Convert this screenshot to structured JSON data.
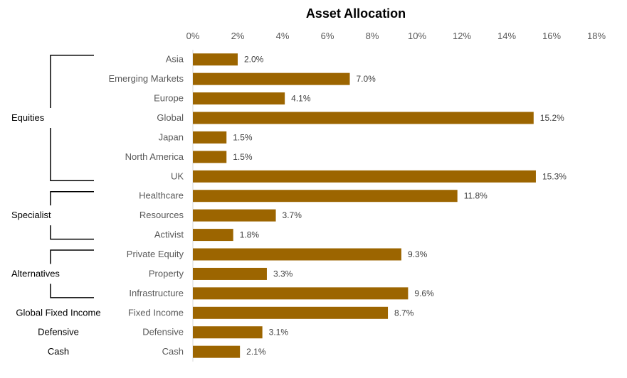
{
  "chart_data": {
    "type": "bar",
    "orientation": "horizontal",
    "title": "Asset Allocation",
    "xlabel": "",
    "ylabel": "",
    "xlim": [
      0,
      18
    ],
    "x_ticks": [
      "0%",
      "2%",
      "4%",
      "6%",
      "8%",
      "10%",
      "12%",
      "14%",
      "16%",
      "18%"
    ],
    "x_tick_values": [
      0,
      2,
      4,
      6,
      8,
      10,
      12,
      14,
      16,
      18
    ],
    "axis_position": "top",
    "grid": false,
    "bar_color": "#9C6500",
    "categories": [
      "Asia",
      "Emerging Markets",
      "Europe",
      "Global",
      "Japan",
      "North America",
      "UK",
      "Healthcare",
      "Resources",
      "Activist",
      "Private Equity",
      "Property",
      "Infrastructure",
      "Fixed Income",
      "Defensive",
      "Cash"
    ],
    "values": [
      2.0,
      7.0,
      4.1,
      15.2,
      1.5,
      1.5,
      15.3,
      11.8,
      3.7,
      1.8,
      9.3,
      3.3,
      9.6,
      8.7,
      3.1,
      2.1
    ],
    "data_labels": [
      "2.0%",
      "7.0%",
      "4.1%",
      "15.2%",
      "1.5%",
      "1.5%",
      "15.3%",
      "11.8%",
      "3.7%",
      "1.8%",
      "9.3%",
      "3.3%",
      "9.6%",
      "8.7%",
      "3.1%",
      "2.1%"
    ],
    "groups": [
      {
        "name": "Equities",
        "categories": [
          "Asia",
          "Emerging Markets",
          "Europe",
          "Global",
          "Japan",
          "North America",
          "UK"
        ]
      },
      {
        "name": "Specialist",
        "categories": [
          "Healthcare",
          "Resources",
          "Activist"
        ]
      },
      {
        "name": "Alternatives",
        "categories": [
          "Private Equity",
          "Property",
          "Infrastructure"
        ]
      },
      {
        "name": "Global Fixed Income",
        "categories": [
          "Fixed Income"
        ]
      },
      {
        "name": "Defensive",
        "categories": [
          "Defensive"
        ]
      },
      {
        "name": "Cash",
        "categories": [
          "Cash"
        ]
      }
    ]
  }
}
